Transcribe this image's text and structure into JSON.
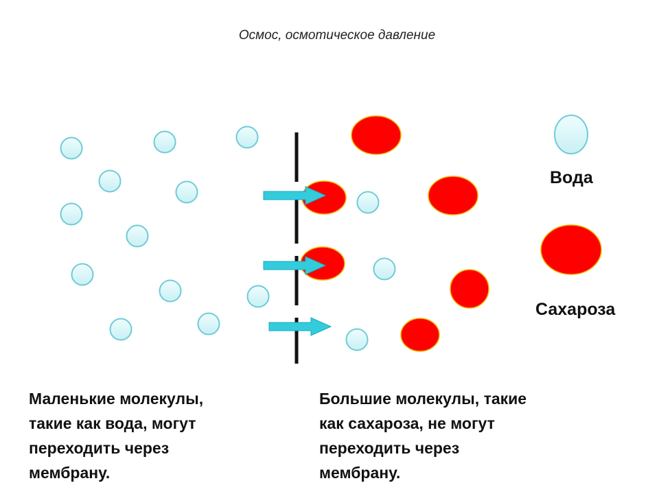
{
  "title": "Осмос, осмотическое давление",
  "legend": {
    "water_label": "Вода",
    "sucrose_label": "Сахароза"
  },
  "captions": {
    "left": "Маленькие молекулы,\nтакие как вода, могут\nпереходить через\nмембрану.",
    "right": "Большие молекулы, такие\nкак сахароза, не могут\nпереходить через\nмембрану."
  },
  "colors": {
    "water_fill": "#d6f6f8",
    "water_stroke": "#6fcbd6",
    "sucrose_fill": "#ff0000",
    "sucrose_stroke": "#f0b800",
    "arrow": "#33ccdd",
    "membrane": "#111111"
  }
}
